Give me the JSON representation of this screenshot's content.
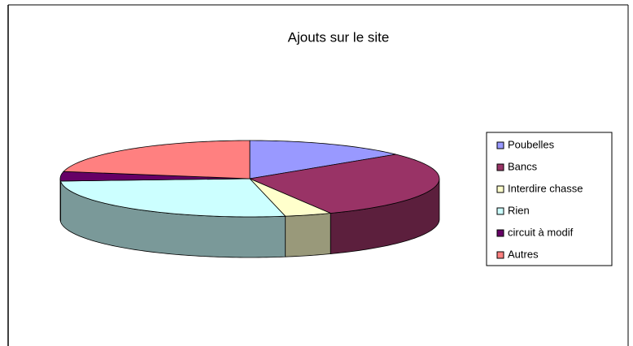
{
  "chart_data": {
    "type": "pie3d",
    "title": "Ajouts sur le site",
    "categories": [
      "Poubelles",
      "Bancs",
      "Interdire chasse",
      "Rien",
      "circuit à modif",
      "Autres"
    ],
    "values": [
      14,
      29,
      4,
      27,
      4,
      22
    ],
    "colors": [
      "#9999ff",
      "#993366",
      "#ffffcc",
      "#ccffff",
      "#660066",
      "#ff8080"
    ],
    "legend": "right"
  }
}
